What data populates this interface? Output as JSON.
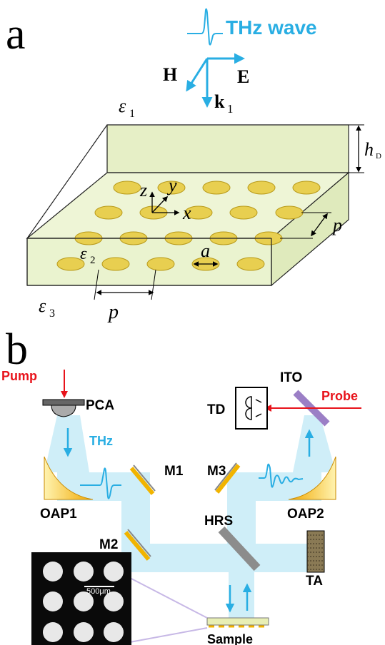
{
  "panel_a": {
    "letter": "a",
    "wave_label": "THz wave",
    "field_h": "H",
    "field_e": "E",
    "wavevector": "k",
    "wavevector_sub": "1",
    "eps1": "ε",
    "eps1_sub": "1",
    "eps2": "ε",
    "eps2_sub": "2",
    "eps3": "ε",
    "eps3_sub": "3",
    "thickness": "h",
    "thickness_sub": "D",
    "axis_z": "z",
    "axis_y": "y",
    "axis_x": "x",
    "period_right": "p",
    "period_bottom": "p",
    "disk_diameter": "a"
  },
  "panel_b": {
    "letter": "b",
    "pump": "Pump",
    "pca": "PCA",
    "thz": "THz",
    "oap1": "OAP1",
    "oap2": "OAP2",
    "m1": "M1",
    "m2": "M2",
    "m3": "M3",
    "ito": "ITO",
    "probe": "Probe",
    "td": "TD",
    "hrs": "HRS",
    "ta": "TA",
    "sample": "Sample",
    "scale_bar": "500μm"
  },
  "colors": {
    "beam": "#cfeef8",
    "thz_blue": "#29aee3",
    "pump_red": "#e8131b",
    "disk_gold": "#e8cf50",
    "slab_green": "#e4efc4",
    "ito_purple": "#9b7fc6",
    "oap_gold": "#f5b820"
  }
}
